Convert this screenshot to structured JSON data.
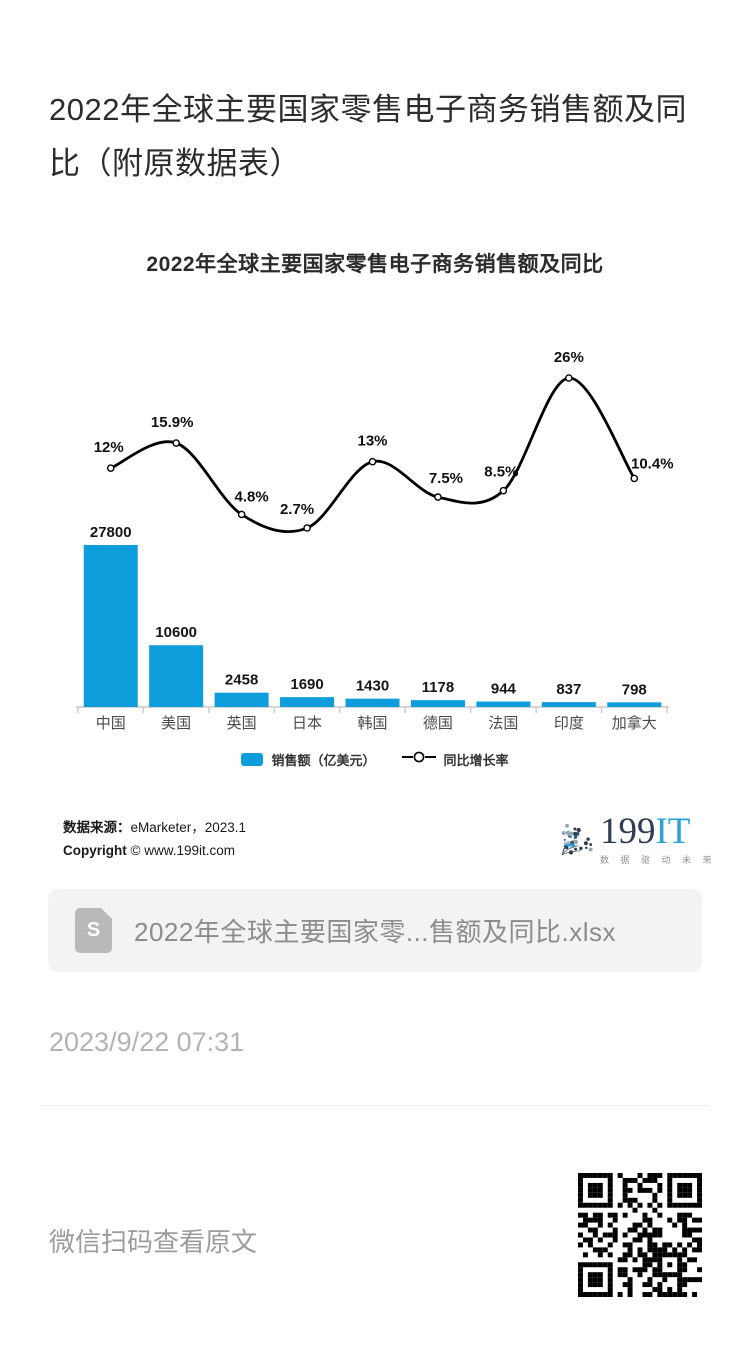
{
  "page": {
    "title": "2022年全球主要国家零售电子商务销售额及同比（附原数据表）",
    "publish_time": "2023/9/22 07:31",
    "footer_hint": "微信扫码查看原文"
  },
  "chart_data": {
    "type": "bar",
    "subtype": "bar-line-combo",
    "title": "2022年全球主要国家零售电子商务销售额及同比",
    "categories": [
      "中国",
      "美国",
      "英国",
      "日本",
      "韩国",
      "德国",
      "法国",
      "印度",
      "加拿大"
    ],
    "series": [
      {
        "name": "销售额（亿美元）",
        "type": "bar",
        "values": [
          27800,
          10600,
          2458,
          1690,
          1430,
          1178,
          944,
          837,
          798
        ]
      },
      {
        "name": "同比增长率",
        "type": "line",
        "values": [
          12,
          15.9,
          4.8,
          2.7,
          13,
          7.5,
          8.5,
          26,
          10.4
        ],
        "point_labels": [
          "12%",
          "15.9%",
          "4.8%",
          "2.7%",
          "13%",
          "7.5%",
          "8.5%",
          "26%",
          "10.4%"
        ]
      }
    ],
    "legend_position": "bottom",
    "grid": false,
    "bar_axis_range": [
      0,
      27800
    ],
    "line_axis_range": [
      0,
      30
    ],
    "bar_color": "#0d9ddb",
    "line_color": "#000000",
    "axis_color": "#c8c8c8"
  },
  "source": {
    "label1": "数据来源：",
    "value1": "eMarketer，2023.1",
    "label2": "Copyright",
    "value2": " © www.199it.com"
  },
  "logo": {
    "name": "199IT",
    "part_main": "199",
    "part_accent": "IT",
    "tagline": "数 据 驱 动 未 来",
    "color_main": "#2e3d54",
    "color_accent": "#2aa3d8"
  },
  "attachment": {
    "filename": "2022年全球主要国家零...售额及同比.xlsx",
    "icon_letter": "S"
  }
}
